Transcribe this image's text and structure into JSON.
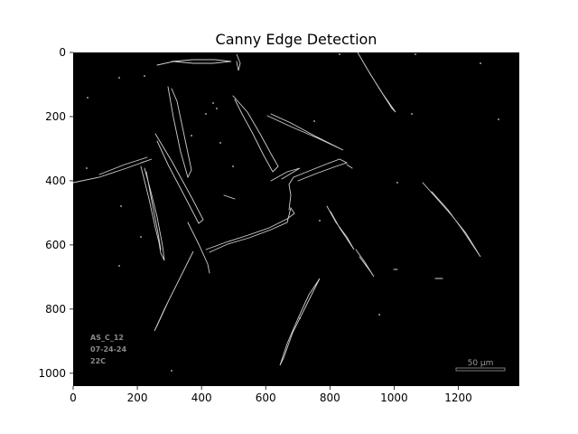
{
  "figure": {
    "title": "Canny Edge Detection",
    "x_axis": {
      "range": [
        0,
        1390
      ],
      "ticks": [
        0,
        200,
        400,
        600,
        800,
        1000,
        1200
      ]
    },
    "y_axis": {
      "range": [
        0,
        1040
      ],
      "inverted": true,
      "ticks": [
        0,
        200,
        400,
        600,
        800,
        1000
      ]
    },
    "image": {
      "background": "#000000",
      "edge_color": "#cfcfcf",
      "content": "thin white edge outlines of elongated crystals on a black field"
    },
    "sample_label": [
      "AS_C_12",
      "07-24-24",
      "22C"
    ],
    "scale_bar": {
      "label": "50 µm"
    }
  }
}
